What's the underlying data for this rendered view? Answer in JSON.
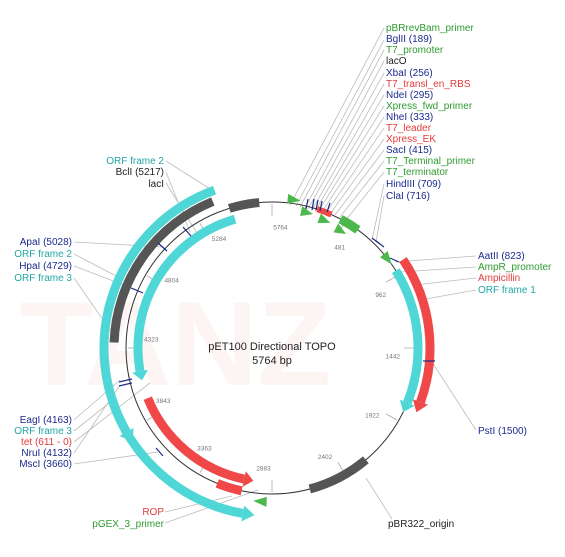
{
  "plasmid": {
    "name": "pET100 Directional TOPO",
    "size": "5764 bp",
    "watermark": "TANZ"
  },
  "ticks": [
    "5764",
    "481",
    "962",
    "1442",
    "1922",
    "2402",
    "2883",
    "3363",
    "3843",
    "4323",
    "4804",
    "5284"
  ],
  "labels": {
    "pBRrevBam_primer": "pBRrevBam_primer",
    "BglII": "BglII (189)",
    "T7_promoter": "T7_promoter",
    "lacO": "lacO",
    "XbaI": "XbaI (256)",
    "T7_transl_en_RBS": "T7_transl_en_RBS",
    "NdeI": "NdeI (295)",
    "Xpress_fwd_primer": "Xpress_fwd_primer",
    "NheI": "NheI (333)",
    "T7_leader": "T7_leader",
    "Xpress_EK": "Xpress_EK",
    "SacI": "SacI (415)",
    "T7_Terminal_primer": "T7_Terminal_primer",
    "T7_terminator": "T7_terminator",
    "HindIII": "HindIII (709)",
    "ClaI": "ClaI (716)",
    "AatII": "AatII (823)",
    "AmpR_promoter": "AmpR_promoter",
    "Ampicillin": "Ampicillin",
    "ORF_frame_1": "ORF frame 1",
    "PstI": "PstI (1500)",
    "pBR322_origin": "pBR322_origin",
    "ROP": "ROP",
    "pGEX_3_primer": "pGEX_3_primer",
    "MscI": "MscI (3660)",
    "NruI": "NruI (4132)",
    "tet": "tet (611 - 0)",
    "ORF_frame_3_low": "ORF frame 3",
    "EagI": "EagI (4163)",
    "ORF_frame_3_up": "ORF frame 3",
    "HpaI": "HpaI (4729)",
    "ORF_frame_2_left": "ORF frame 2",
    "ApaI": "ApaI (5028)",
    "lacI": "lacI",
    "BclI": "BclI (5217)",
    "ORF_frame_2_top": "ORF frame 2"
  },
  "colors": {
    "primer": "#2e9b2e",
    "enzyme": "#1a2a8c",
    "feature_red": "#e23b3b",
    "orf": "#21a6a6",
    "black": "#222222",
    "arc_gray": "#555555",
    "arc_red": "#f04848",
    "arc_cyan": "#4fd6d6",
    "arc_green": "#4bb84b"
  }
}
